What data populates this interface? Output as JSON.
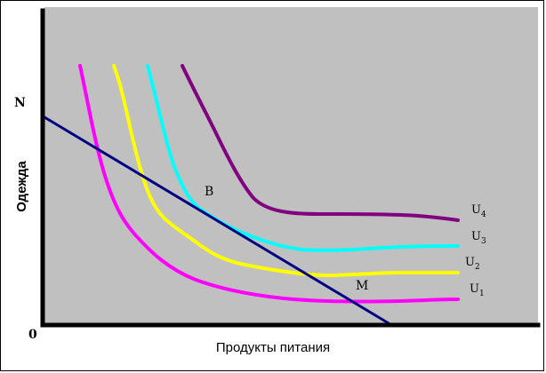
{
  "axes": {
    "origin_label": "0",
    "y_title": "Одежда",
    "x_title": "Продукты питания",
    "y_intercept_label": "N"
  },
  "points": {
    "B": "B",
    "M": "M"
  },
  "curves": [
    {
      "name": "U",
      "index": "1",
      "color": "#ff00ff"
    },
    {
      "name": "U",
      "index": "2",
      "color": "#ffff00"
    },
    {
      "name": "U",
      "index": "3",
      "color": "#00ffff"
    },
    {
      "name": "U",
      "index": "4",
      "color": "#800080"
    }
  ],
  "budget_line_color": "#000080",
  "plot_background": "#c0c0c0"
}
